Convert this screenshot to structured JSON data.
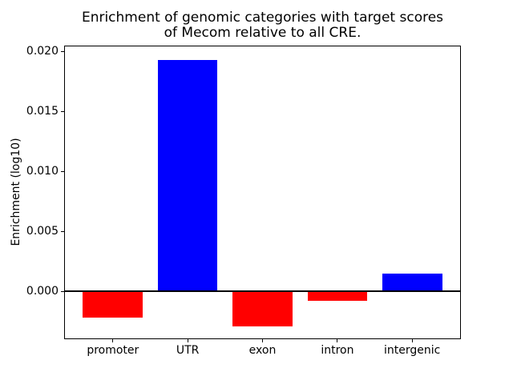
{
  "chart_data": {
    "type": "bar",
    "title": "Enrichment of genomic categories with target scores\nof Mecom relative to all CRE.",
    "title_lines": [
      "Enrichment of genomic categories with target scores",
      "of Mecom relative to all CRE."
    ],
    "xlabel": "",
    "ylabel": "Enrichment (log10)",
    "categories": [
      "promoter",
      "UTR",
      "exon",
      "intron",
      "intergenic"
    ],
    "values": [
      -0.0022,
      0.0193,
      -0.0029,
      -0.0008,
      0.0015
    ],
    "bar_colors": [
      "#ff0000",
      "#0000ff",
      "#ff0000",
      "#ff0000",
      "#0000ff"
    ],
    "positive_color": "#0000ff",
    "negative_color": "#ff0000",
    "yticks": [
      0.0,
      0.005,
      0.01,
      0.015,
      0.02
    ],
    "ytick_labels": [
      "0.000",
      "0.005",
      "0.010",
      "0.015",
      "0.020"
    ],
    "ylim": [
      -0.0039,
      0.0204
    ],
    "xlim": [
      -0.64,
      4.64
    ],
    "bar_width": 0.8,
    "zero_line": true,
    "grid": false,
    "legend": false,
    "background_color": "#ffffff",
    "spine_color": "#000000"
  }
}
